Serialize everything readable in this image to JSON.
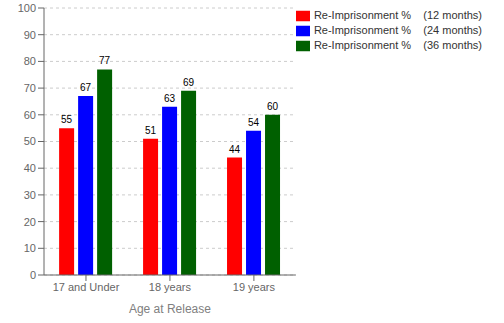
{
  "chart_data": {
    "type": "bar",
    "categories": [
      "17 and Under",
      "18 years",
      "19 years"
    ],
    "series": [
      {
        "name": "Re-Imprisonment %    (12 months)",
        "color": "#FF0000",
        "values": [
          55,
          51,
          44
        ]
      },
      {
        "name": "Re-Imprisonment %    (24 months)",
        "color": "#0000FF",
        "values": [
          67,
          63,
          54
        ]
      },
      {
        "name": "Re-Imprisonment %    (36 months)",
        "color": "#006000",
        "values": [
          77,
          69,
          60
        ]
      }
    ],
    "xlabel": "Age at Release",
    "ylim": [
      0,
      100
    ],
    "yticks": [
      0,
      10,
      20,
      30,
      40,
      50,
      60,
      70,
      80,
      90,
      100
    ],
    "grid": true,
    "legend": "upper right",
    "data_labels": true
  }
}
